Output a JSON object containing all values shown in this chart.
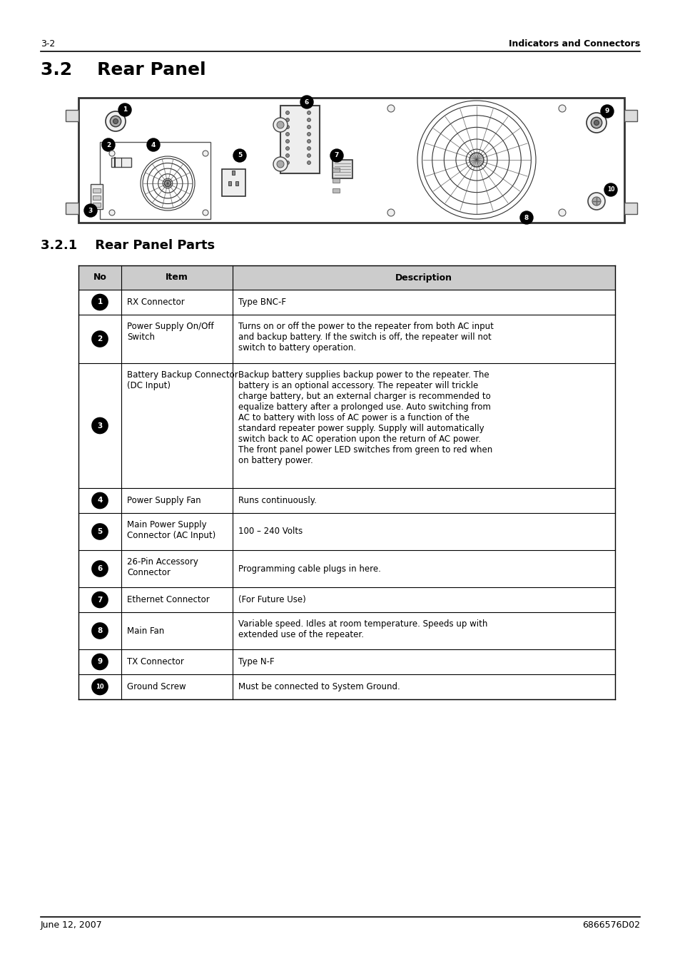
{
  "page_header_left": "3-2",
  "page_header_right": "Indicators and Connectors",
  "section_title": "3.2    Rear Panel",
  "subsection_title": "3.2.1    Rear Panel Parts",
  "table_header": [
    "No",
    "Item",
    "Description"
  ],
  "table_rows": [
    {
      "no": "1",
      "item": "RX Connector",
      "description": "Type BNC-F"
    },
    {
      "no": "2",
      "item": "Power Supply On/Off\nSwitch",
      "description": "Turns on or off the power to the repeater from both AC input\nand backup battery. If the switch is off, the repeater will not\nswitch to battery operation."
    },
    {
      "no": "3",
      "item": "Battery Backup Connector\n(DC Input)",
      "description": "Backup battery supplies backup power to the repeater. The\nbattery is an optional accessory. The repeater will trickle\ncharge battery, but an external charger is recommended to\nequalize battery after a prolonged use. Auto switching from\nAC to battery with loss of AC power is a function of the\nstandard repeater power supply. Supply will automatically\nswitch back to AC operation upon the return of AC power.\nThe front panel power LED switches from green to red when\non battery power."
    },
    {
      "no": "4",
      "item": "Power Supply Fan",
      "description": "Runs continuously."
    },
    {
      "no": "5",
      "item": "Main Power Supply\nConnector (AC Input)",
      "description": "100 – 240 Volts"
    },
    {
      "no": "6",
      "item": "26-Pin Accessory\nConnector",
      "description": "Programming cable plugs in here."
    },
    {
      "no": "7",
      "item": "Ethernet Connector",
      "description": "(For Future Use)"
    },
    {
      "no": "8",
      "item": "Main Fan",
      "description": "Variable speed. Idles at room temperature. Speeds up with\nextended use of the repeater."
    },
    {
      "no": "9",
      "item": "TX Connector",
      "description": "Type N-F"
    },
    {
      "no": "10",
      "item": "Ground Screw",
      "description": "Must be connected to System Ground."
    }
  ],
  "footer_left": "June 12, 2007",
  "footer_right": "6866576D02",
  "bg_color": "#ffffff",
  "table_header_bg": "#cccccc",
  "panel_bg": "#f5f5f5"
}
